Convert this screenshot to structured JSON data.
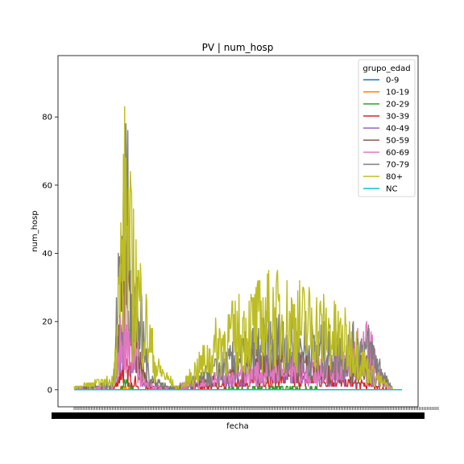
{
  "chart_data": {
    "type": "line",
    "title": "PV | num_hosp",
    "xlabel": "fecha",
    "ylabel": "num_hosp",
    "yticks": [
      "0",
      "20",
      "40",
      "60",
      "80"
    ],
    "ylim": [
      -5,
      98
    ],
    "grid": false,
    "legend": {
      "title": "grupo_edad",
      "placement": "top-right"
    },
    "series": [
      {
        "name": "0-9",
        "color": "#1f77b4",
        "anchors": [
          [
            0,
            0
          ],
          [
            1,
            0
          ]
        ]
      },
      {
        "name": "10-19",
        "color": "#ff7f0e",
        "anchors": [
          [
            0,
            0
          ],
          [
            0.14,
            0
          ],
          [
            0.155,
            1
          ],
          [
            0.17,
            0
          ],
          [
            1,
            0
          ]
        ]
      },
      {
        "name": "20-29",
        "color": "#2ca02c",
        "anchors": [
          [
            0,
            0
          ],
          [
            0.14,
            0
          ],
          [
            0.155,
            3
          ],
          [
            0.165,
            2
          ],
          [
            0.18,
            0
          ],
          [
            0.45,
            0
          ],
          [
            0.6,
            1
          ],
          [
            0.75,
            0
          ],
          [
            1,
            0
          ]
        ]
      },
      {
        "name": "30-39",
        "color": "#d62728",
        "anchors": [
          [
            0,
            0
          ],
          [
            0.12,
            0
          ],
          [
            0.15,
            10
          ],
          [
            0.17,
            8
          ],
          [
            0.2,
            0
          ],
          [
            0.45,
            2
          ],
          [
            0.6,
            5
          ],
          [
            0.75,
            4
          ],
          [
            0.9,
            2
          ],
          [
            0.97,
            0
          ],
          [
            1,
            0
          ]
        ]
      },
      {
        "name": "40-49",
        "color": "#9467bd",
        "anchors": [
          [
            0,
            0
          ],
          [
            0.12,
            1
          ],
          [
            0.155,
            38
          ],
          [
            0.17,
            25
          ],
          [
            0.21,
            2
          ],
          [
            0.26,
            0
          ],
          [
            0.45,
            4
          ],
          [
            0.6,
            11
          ],
          [
            0.75,
            7
          ],
          [
            0.9,
            8
          ],
          [
            0.97,
            0
          ],
          [
            1,
            0
          ]
        ]
      },
      {
        "name": "50-59",
        "color": "#8c564b",
        "anchors": [
          [
            0,
            0
          ],
          [
            0.12,
            2
          ],
          [
            0.155,
            62
          ],
          [
            0.17,
            40
          ],
          [
            0.22,
            4
          ],
          [
            0.28,
            0
          ],
          [
            0.45,
            6
          ],
          [
            0.6,
            14
          ],
          [
            0.75,
            9
          ],
          [
            0.9,
            11
          ],
          [
            0.97,
            0
          ],
          [
            1,
            0
          ]
        ]
      },
      {
        "name": "60-69",
        "color": "#e377c2",
        "anchors": [
          [
            0,
            0
          ],
          [
            0.12,
            1
          ],
          [
            0.155,
            33
          ],
          [
            0.17,
            20
          ],
          [
            0.21,
            3
          ],
          [
            0.27,
            0
          ],
          [
            0.45,
            5
          ],
          [
            0.6,
            9
          ],
          [
            0.75,
            8
          ],
          [
            0.9,
            20
          ],
          [
            0.93,
            6
          ],
          [
            0.97,
            0
          ],
          [
            1,
            0
          ]
        ]
      },
      {
        "name": "70-79",
        "color": "#7f7f7f",
        "anchors": [
          [
            0,
            0
          ],
          [
            0.12,
            3
          ],
          [
            0.155,
            93
          ],
          [
            0.17,
            55
          ],
          [
            0.23,
            6
          ],
          [
            0.3,
            0
          ],
          [
            0.45,
            10
          ],
          [
            0.6,
            22
          ],
          [
            0.75,
            18
          ],
          [
            0.9,
            18
          ],
          [
            0.97,
            0
          ],
          [
            1,
            0
          ]
        ]
      },
      {
        "name": "80+",
        "color": "#bcbd22",
        "anchors": [
          [
            0,
            1
          ],
          [
            0.12,
            4
          ],
          [
            0.155,
            80
          ],
          [
            0.175,
            55
          ],
          [
            0.25,
            10
          ],
          [
            0.32,
            0
          ],
          [
            0.45,
            22
          ],
          [
            0.6,
            33
          ],
          [
            0.75,
            28
          ],
          [
            0.85,
            20
          ],
          [
            0.9,
            8
          ],
          [
            0.97,
            0
          ],
          [
            1,
            0
          ]
        ]
      },
      {
        "name": "NC",
        "color": "#17becf",
        "anchors": [
          [
            0,
            0
          ],
          [
            1,
            0
          ]
        ]
      }
    ]
  }
}
